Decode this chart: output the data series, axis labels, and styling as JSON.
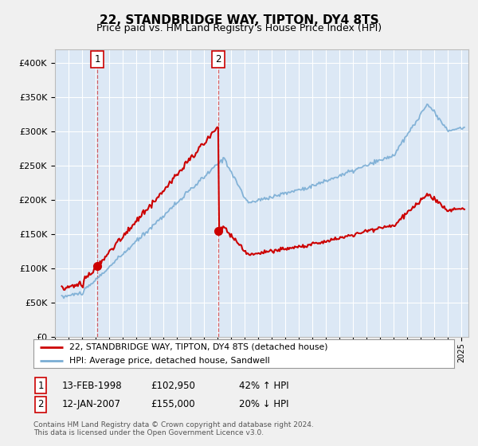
{
  "title": "22, STANDBRIDGE WAY, TIPTON, DY4 8TS",
  "subtitle": "Price paid vs. HM Land Registry's House Price Index (HPI)",
  "legend_line1": "22, STANDBRIDGE WAY, TIPTON, DY4 8TS (detached house)",
  "legend_line2": "HPI: Average price, detached house, Sandwell",
  "sale1_label": "1",
  "sale1_date": "13-FEB-1998",
  "sale1_price": "£102,950",
  "sale1_hpi": "42% ↑ HPI",
  "sale1_year": 1998.12,
  "sale1_value": 102950,
  "sale2_label": "2",
  "sale2_date": "12-JAN-2007",
  "sale2_price": "£155,000",
  "sale2_hpi": "20% ↓ HPI",
  "sale2_year": 2007.04,
  "sale2_value": 155000,
  "price_line_color": "#cc0000",
  "hpi_line_color": "#7aadd4",
  "plot_bg_color": "#dce8f5",
  "grid_color": "#ffffff",
  "yticks": [
    0,
    50000,
    100000,
    150000,
    200000,
    250000,
    300000,
    350000,
    400000
  ],
  "ytick_labels": [
    "£0",
    "£50K",
    "£100K",
    "£150K",
    "£200K",
    "£250K",
    "£300K",
    "£350K",
    "£400K"
  ],
  "footer": "Contains HM Land Registry data © Crown copyright and database right 2024.\nThis data is licensed under the Open Government Licence v3.0.",
  "title_fontsize": 11,
  "subtitle_fontsize": 9
}
